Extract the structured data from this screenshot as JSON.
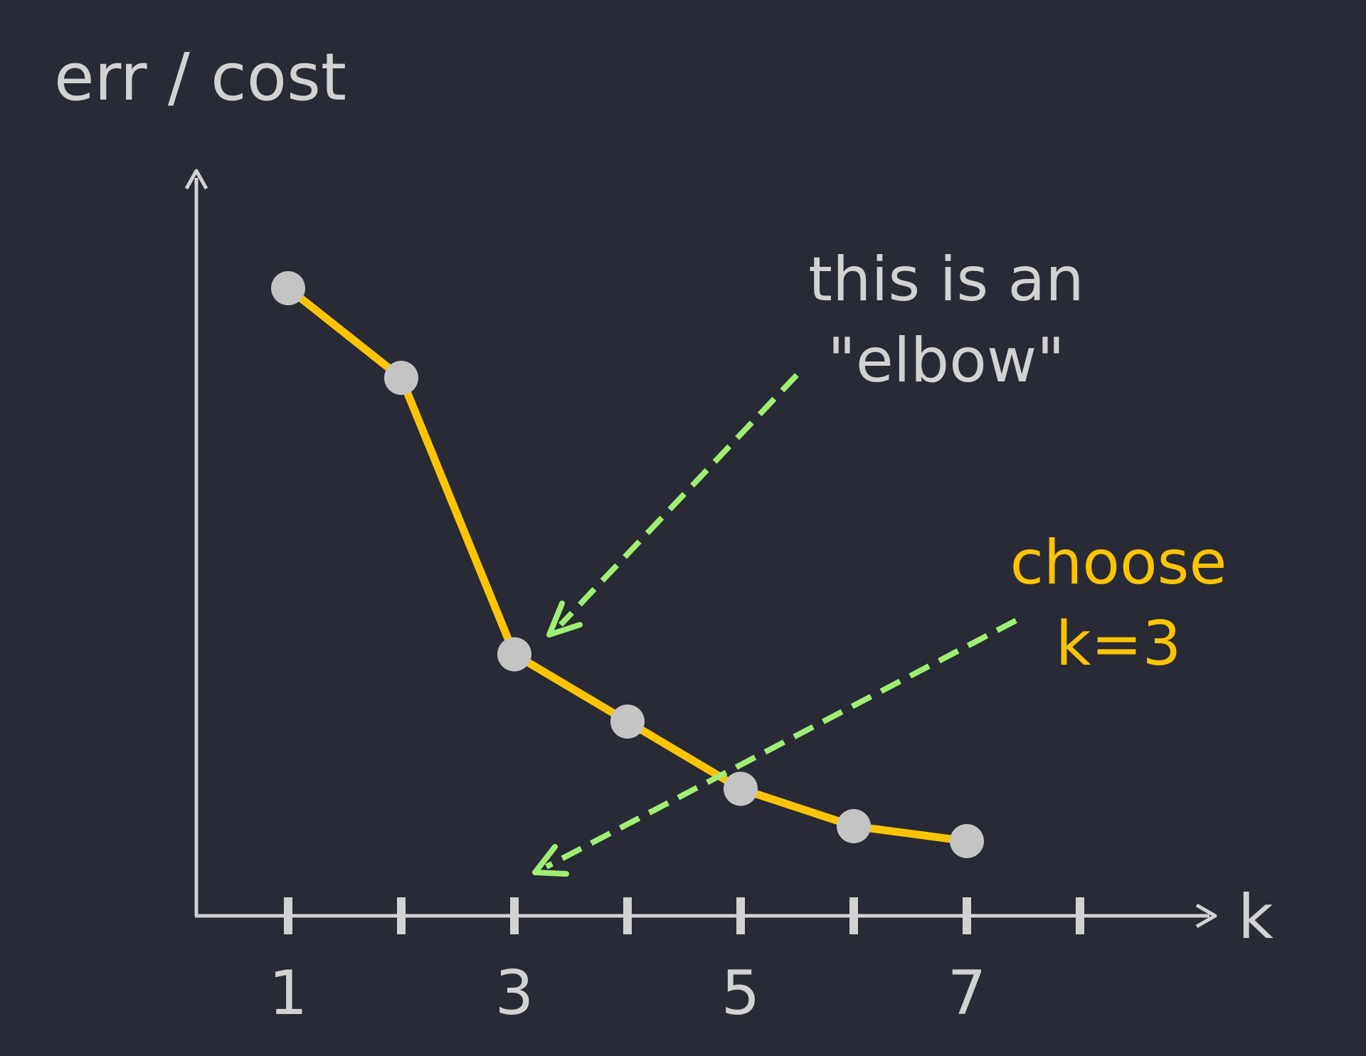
{
  "chart_data": {
    "type": "line",
    "ylabel": "err / cost",
    "xlabel": "k",
    "xlim": [
      0.2,
      8.2
    ],
    "ylim": [
      0,
      10
    ],
    "ticks": [
      1,
      2,
      3,
      4,
      5,
      6,
      7,
      8
    ],
    "tick_labels": [
      "1",
      "3",
      "5",
      "7"
    ],
    "x": [
      1,
      2,
      3,
      4,
      5,
      6,
      7
    ],
    "y": [
      8.4,
      7.2,
      3.5,
      2.6,
      1.7,
      1.2,
      1.0
    ],
    "line_color": "#ffc400",
    "marker_color": "#c4c4c4",
    "axis_color": "#d2d2d2",
    "arrow_color": "#9fef72",
    "annotations": [
      {
        "id": "elbow",
        "lines": [
          "this is an",
          "\"elbow\""
        ],
        "color": "#d2d2d2"
      },
      {
        "id": "choose",
        "lines": [
          "choose",
          "k=3"
        ],
        "color": "#ffc400"
      }
    ]
  }
}
